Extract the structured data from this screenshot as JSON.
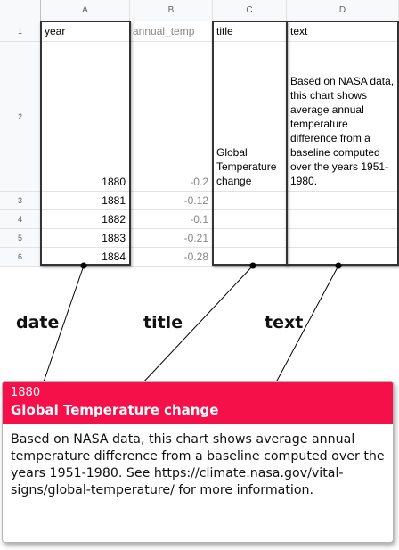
{
  "columns": [
    "A",
    "B",
    "C",
    "D"
  ],
  "row_numbers": [
    "1",
    "2",
    "3",
    "4",
    "5",
    "6"
  ],
  "headers": {
    "year": "year",
    "annual_temp": "annual_temp",
    "title": "title",
    "text": "text"
  },
  "rows": [
    {
      "year": "1880",
      "annual_temp": "-0.2",
      "title": "Global Temperature change",
      "text": "Based on NASA data, this chart shows average annual temperature difference from a baseline computed over the years 1951-1980."
    },
    {
      "year": "1881",
      "annual_temp": "-0.12",
      "title": "",
      "text": ""
    },
    {
      "year": "1882",
      "annual_temp": "-0.1",
      "title": "",
      "text": ""
    },
    {
      "year": "1883",
      "annual_temp": "-0.21",
      "title": "",
      "text": ""
    },
    {
      "year": "1884",
      "annual_temp": "-0.28",
      "title": "",
      "text": ""
    }
  ],
  "callout_labels": {
    "date": "date",
    "title": "title",
    "text": "text"
  },
  "tooltip": {
    "date": "1880",
    "title": "Global Temperature change",
    "text": "Based on NASA data, this chart shows average annual temperature difference from a baseline computed over the years 1951-1980. See https://climate.nasa.gov/vital-signs/global-temperature/ for more information.",
    "accent_color": "#f5104a"
  }
}
